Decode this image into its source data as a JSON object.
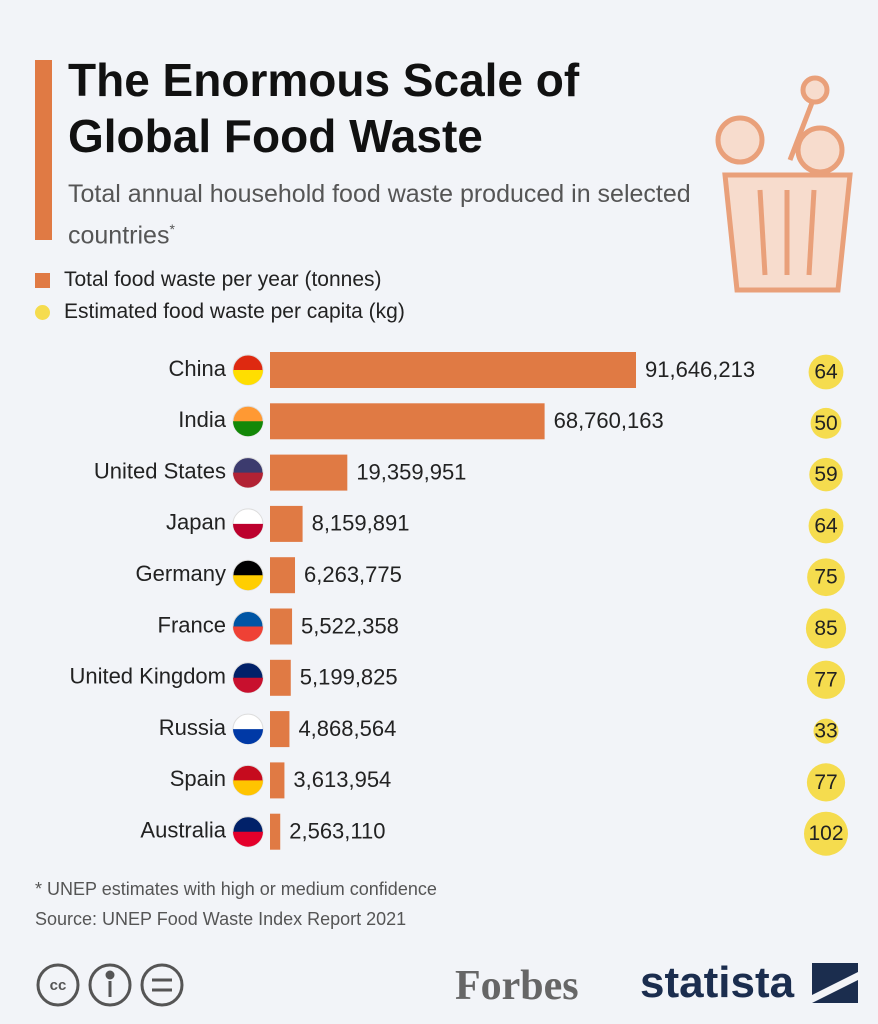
{
  "chart_data": {
    "type": "bar",
    "orientation": "horizontal",
    "title": "The Enormous Scale of Global Food Waste",
    "subtitle": "Total annual household food waste produced in selected countries",
    "subtitle_marker": "*",
    "categories": [
      "China",
      "India",
      "United States",
      "Japan",
      "Germany",
      "France",
      "United Kingdom",
      "Russia",
      "Spain",
      "Australia"
    ],
    "series": [
      {
        "name": "Total food waste per year (tonnes)",
        "color": "#e07a44",
        "values": [
          91646213,
          68760163,
          19359951,
          8159891,
          6263775,
          5522358,
          5199825,
          4868564,
          3613954,
          2563110
        ],
        "value_labels": [
          "91,646,213",
          "68,760,163",
          "19,359,951",
          "8,159,891",
          "6,263,775",
          "5,522,358",
          "5,199,825",
          "4,868,564",
          "3,613,954",
          "2,563,110"
        ]
      },
      {
        "name": "Estimated food waste per capita (kg)",
        "color": "#f5dc4e",
        "values": [
          64,
          50,
          59,
          64,
          75,
          85,
          77,
          33,
          77,
          102
        ]
      }
    ],
    "footnote": "* UNEP estimates with high or medium confidence",
    "source": "Source: UNEP Food Waste Index Report 2021",
    "brands": [
      "Forbes",
      "statista"
    ]
  }
}
